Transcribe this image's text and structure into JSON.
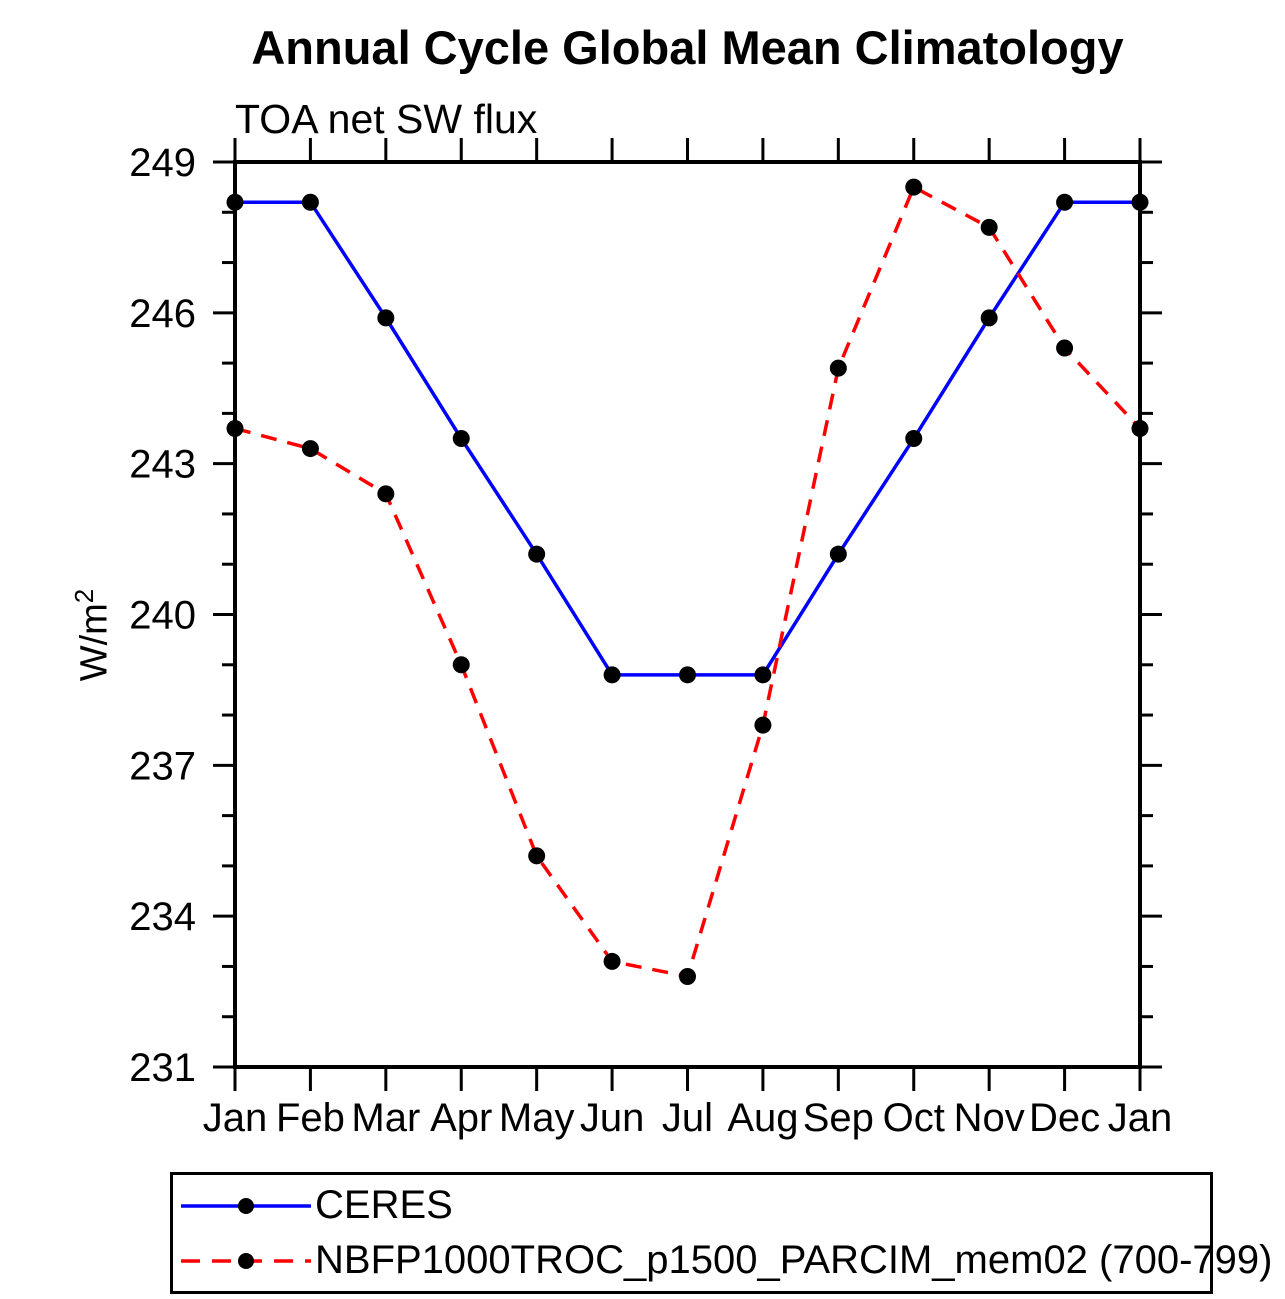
{
  "figure": {
    "background_color": "#ffffff",
    "text_color": "#000000"
  },
  "chart_data": {
    "type": "line",
    "title": "Annual Cycle Global Mean Climatology",
    "subtitle": "TOA net SW flux",
    "ylabel_base": "W/m",
    "ylabel_exponent": "2",
    "xlabel": "",
    "categories": [
      "Jan",
      "Feb",
      "Mar",
      "Apr",
      "May",
      "Jun",
      "Jul",
      "Aug",
      "Sep",
      "Oct",
      "Nov",
      "Dec",
      "Jan"
    ],
    "ylim": [
      231,
      249
    ],
    "yticks_major": [
      231,
      234,
      237,
      240,
      243,
      246,
      249
    ],
    "ytick_minor_step": 1,
    "grid": false,
    "legend_position": "bottom",
    "frame_color": "#000000",
    "marker_color": "#000000",
    "series": [
      {
        "name": "CERES",
        "color": "#0000ff",
        "line_style": "solid",
        "marker": "circle",
        "values": [
          248.2,
          248.2,
          245.9,
          243.5,
          241.2,
          238.8,
          238.8,
          238.8,
          241.2,
          243.5,
          245.9,
          248.2,
          248.2
        ]
      },
      {
        "name": "NBFP1000TROC_p1500_PARCIM_mem02 (700-799)",
        "color": "#ff0000",
        "line_style": "dashed",
        "marker": "circle",
        "values": [
          243.7,
          243.3,
          242.4,
          239.0,
          235.2,
          233.1,
          232.8,
          237.8,
          244.9,
          248.5,
          247.7,
          245.3,
          243.7
        ]
      }
    ]
  }
}
